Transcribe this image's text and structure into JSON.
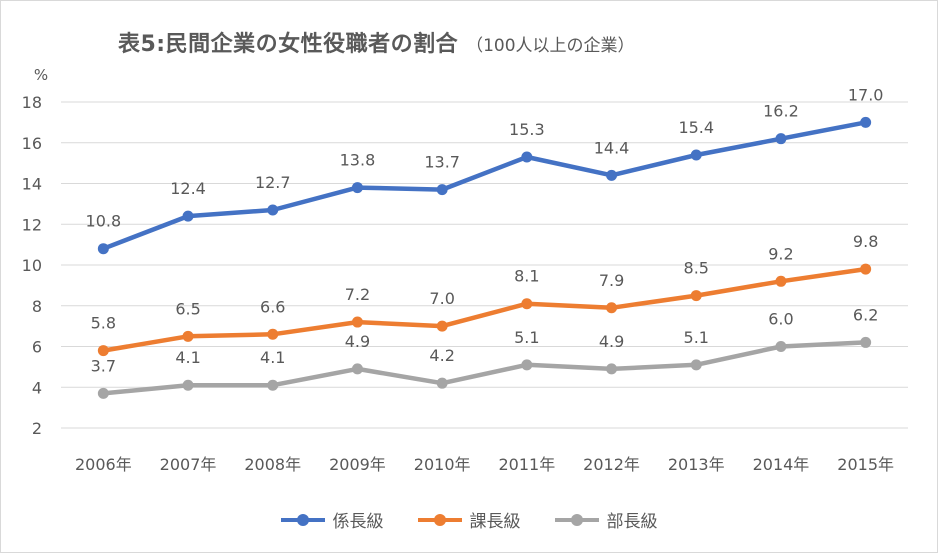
{
  "chart_data": {
    "type": "line",
    "title": "表5:民間企業の女性役職者の割合",
    "subtitle": "（100人以上の企業）",
    "ylabel": "%",
    "xlabel": "",
    "ylim": [
      2,
      18
    ],
    "yticks": [
      2,
      4,
      6,
      8,
      10,
      12,
      14,
      16,
      18
    ],
    "grid": true,
    "legend": "bottom",
    "categories": [
      "2006年",
      "2007年",
      "2008年",
      "2009年",
      "2010年",
      "2011年",
      "2012年",
      "2013年",
      "2014年",
      "2015年"
    ],
    "series": [
      {
        "name": "係長級",
        "color": "#4472c4",
        "values": [
          10.8,
          12.4,
          12.7,
          13.8,
          13.7,
          15.3,
          14.4,
          15.4,
          16.2,
          17.0
        ]
      },
      {
        "name": "課長級",
        "color": "#ed7d31",
        "values": [
          5.8,
          6.5,
          6.6,
          7.2,
          7.0,
          8.1,
          7.9,
          8.5,
          9.2,
          9.8
        ]
      },
      {
        "name": "部長級",
        "color": "#a5a5a5",
        "values": [
          3.7,
          4.1,
          4.1,
          4.9,
          4.2,
          5.1,
          4.9,
          5.1,
          6.0,
          6.2
        ]
      }
    ]
  }
}
